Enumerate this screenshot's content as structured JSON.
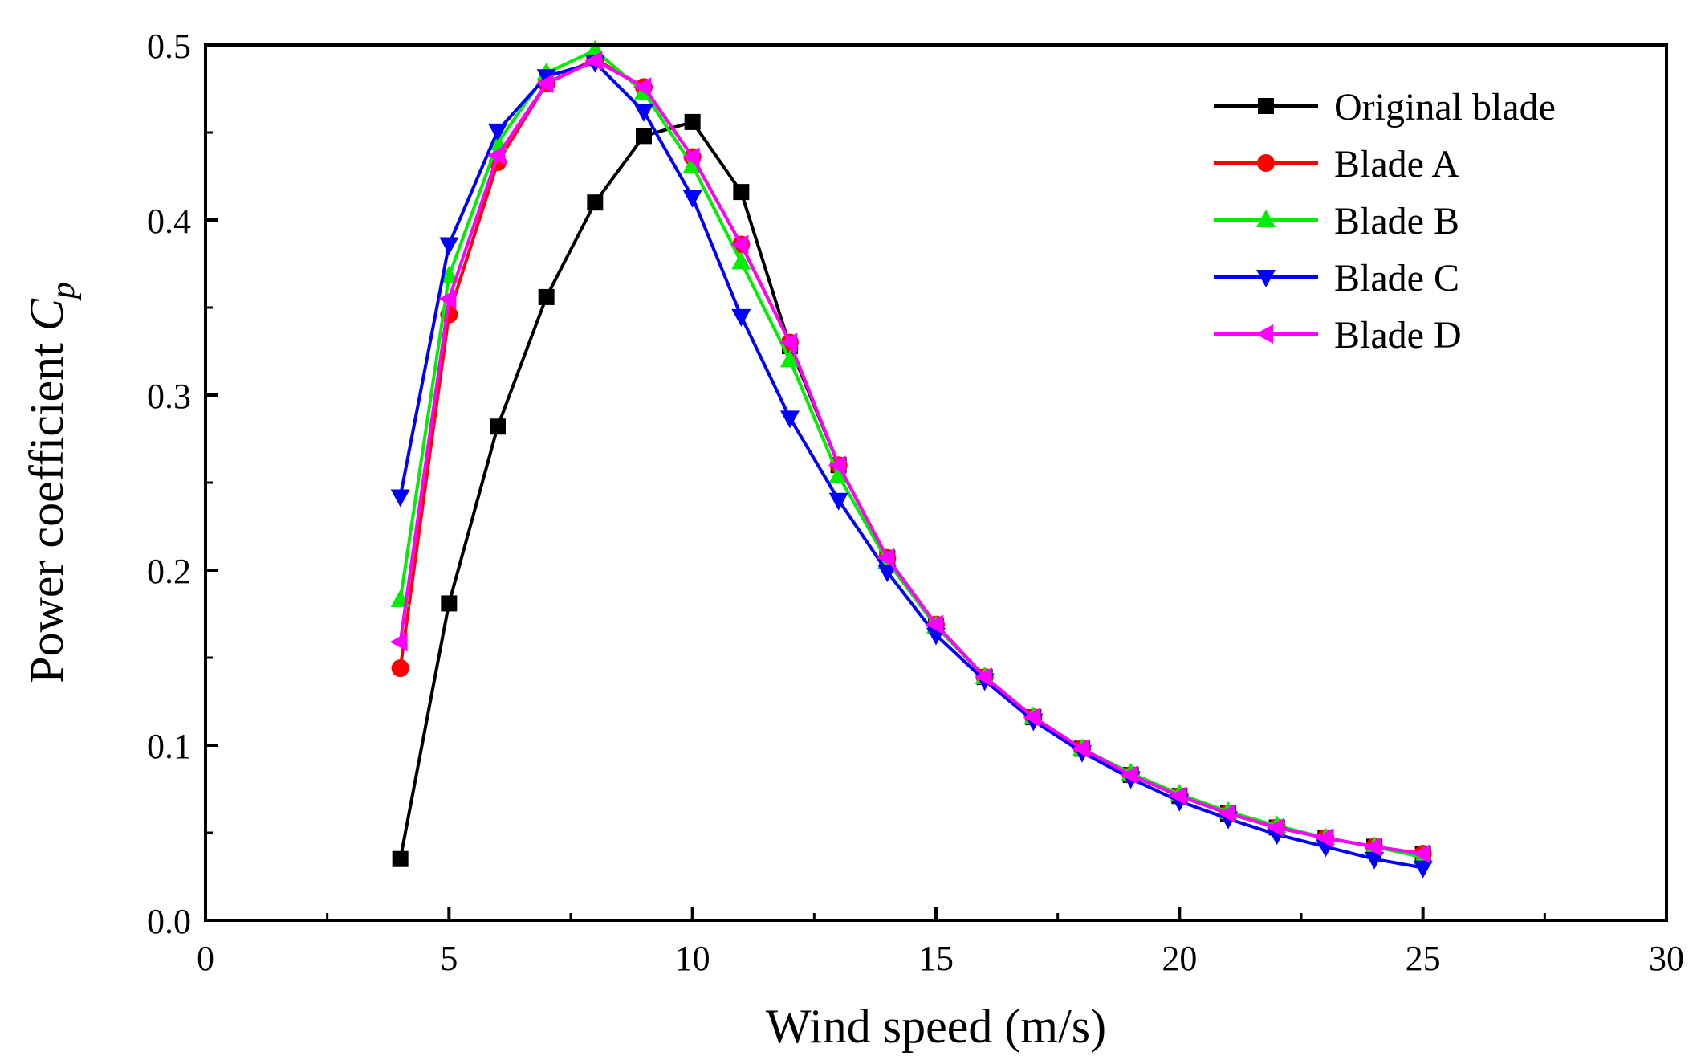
{
  "chart_data": {
    "type": "line",
    "title": "",
    "xlabel": "Wind speed (m/s)",
    "ylabel": "Power coefficient ",
    "ylabel_symbol": "C",
    "ylabel_subscript": "p",
    "xlim": [
      0,
      30
    ],
    "ylim": [
      0,
      0.5
    ],
    "xticks": [
      0,
      5,
      10,
      15,
      20,
      25,
      30
    ],
    "xtick_labels": [
      "0",
      "5",
      "10",
      "15",
      "20",
      "25",
      "30"
    ],
    "yticks": [
      0,
      0.1,
      0.2,
      0.3,
      0.4,
      0.5
    ],
    "ytick_labels": [
      "0.0",
      "0.1",
      "0.2",
      "0.3",
      "0.4",
      "0.5"
    ],
    "grid": false,
    "legend_position": "top-right",
    "x": [
      4,
      5,
      6,
      7,
      8,
      9,
      10,
      11,
      12,
      13,
      14,
      15,
      16,
      17,
      18,
      19,
      20,
      21,
      22,
      23,
      24,
      25
    ],
    "series": [
      {
        "name": "Original blade",
        "color": "#000000",
        "marker": "square",
        "values": [
          0.035,
          0.181,
          0.282,
          0.356,
          0.41,
          0.448,
          0.456,
          0.416,
          0.328,
          0.26,
          0.207,
          0.168,
          0.139,
          0.116,
          0.098,
          0.083,
          0.071,
          0.061,
          0.053,
          0.047,
          0.042,
          0.038
        ]
      },
      {
        "name": "Blade A",
        "color": "#ff0000",
        "marker": "circle",
        "values": [
          0.144,
          0.346,
          0.433,
          0.478,
          0.492,
          0.476,
          0.436,
          0.386,
          0.33,
          0.26,
          0.207,
          0.169,
          0.139,
          0.116,
          0.098,
          0.083,
          0.071,
          0.061,
          0.053,
          0.047,
          0.042,
          0.038
        ]
      },
      {
        "name": "Blade B",
        "color": "#00ee00",
        "marker": "triangle-up",
        "values": [
          0.183,
          0.368,
          0.444,
          0.484,
          0.497,
          0.473,
          0.431,
          0.376,
          0.32,
          0.254,
          0.205,
          0.168,
          0.139,
          0.116,
          0.098,
          0.084,
          0.072,
          0.062,
          0.054,
          0.047,
          0.042,
          0.036
        ]
      },
      {
        "name": "Blade C",
        "color": "#0000ff",
        "marker": "triangle-down",
        "values": [
          0.242,
          0.386,
          0.451,
          0.482,
          0.49,
          0.462,
          0.413,
          0.345,
          0.287,
          0.24,
          0.199,
          0.163,
          0.137,
          0.114,
          0.096,
          0.081,
          0.068,
          0.058,
          0.049,
          0.042,
          0.035,
          0.03
        ]
      },
      {
        "name": "Blade D",
        "color": "#ff00ff",
        "marker": "triangle-left",
        "values": [
          0.159,
          0.355,
          0.437,
          0.478,
          0.491,
          0.476,
          0.436,
          0.386,
          0.33,
          0.26,
          0.207,
          0.169,
          0.139,
          0.116,
          0.098,
          0.083,
          0.071,
          0.061,
          0.053,
          0.047,
          0.042,
          0.038
        ]
      }
    ]
  }
}
